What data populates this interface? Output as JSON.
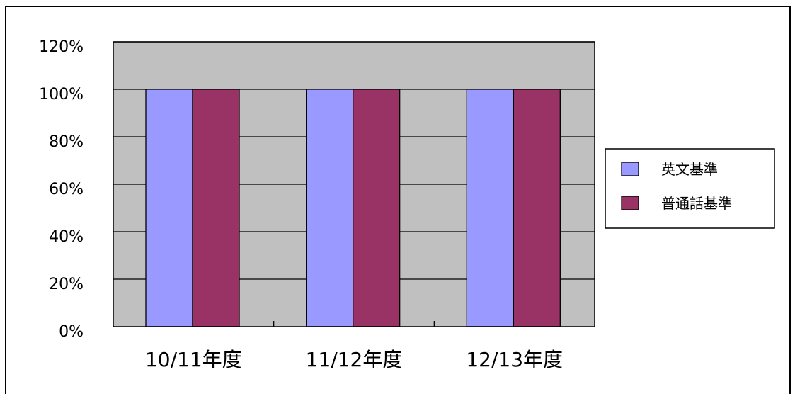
{
  "chart_data": {
    "type": "bar",
    "categories": [
      "10/11年度",
      "11/12年度",
      "12/13年度"
    ],
    "series": [
      {
        "name": "英文基準",
        "values": [
          100,
          100,
          100
        ],
        "color": "#9999ff"
      },
      {
        "name": "普通話基準",
        "values": [
          100,
          100,
          100
        ],
        "color": "#993366"
      }
    ],
    "y_ticks": [
      "0%",
      "20%",
      "40%",
      "60%",
      "80%",
      "100%",
      "120%"
    ],
    "ylim": [
      0,
      120
    ],
    "y_step": 20,
    "grid": true,
    "plot_background": "#c0c0c0",
    "legend_position": "right"
  }
}
